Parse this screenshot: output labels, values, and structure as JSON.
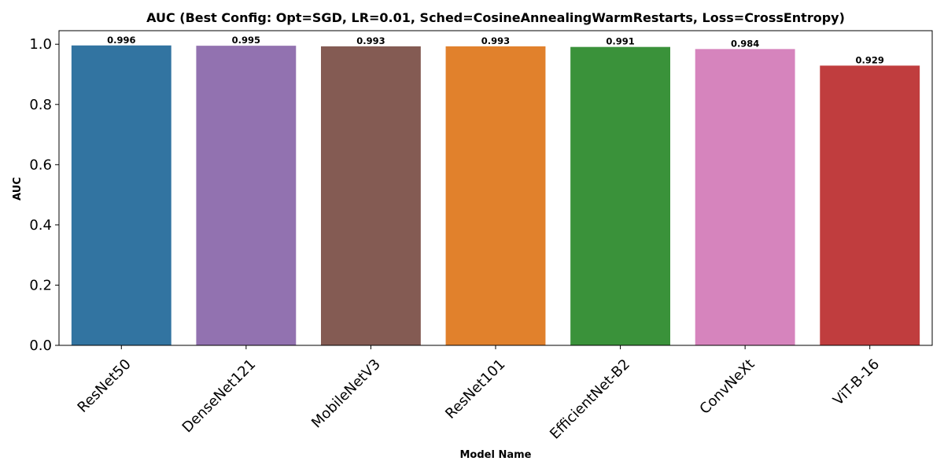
{
  "chart_data": {
    "type": "bar",
    "title": "AUC (Best Config: Opt=SGD, LR=0.01, Sched=CosineAnnealingWarmRestarts, Loss=CrossEntropy)",
    "xlabel": "Model Name",
    "ylabel": "AUC",
    "categories": [
      "ResNet50",
      "DenseNet121",
      "MobileNetV3",
      "ResNet101",
      "EfficientNet-B2",
      "ConvNeXt",
      "ViT-B-16"
    ],
    "values": [
      0.996,
      0.995,
      0.993,
      0.993,
      0.991,
      0.984,
      0.929
    ],
    "value_labels": [
      "0.996",
      "0.995",
      "0.993",
      "0.993",
      "0.991",
      "0.984",
      "0.929"
    ],
    "colors": [
      "#3274a1",
      "#9272b0",
      "#845b53",
      "#e1812c",
      "#3a923a",
      "#d684bd",
      "#c03d3e"
    ],
    "ylim": [
      0,
      1.045
    ],
    "yticks": [
      0.0,
      0.2,
      0.4,
      0.6,
      0.8,
      1.0
    ],
    "ytick_labels": [
      "0.0",
      "0.2",
      "0.4",
      "0.6",
      "0.8",
      "1.0"
    ],
    "grid": false,
    "legend": "none"
  }
}
